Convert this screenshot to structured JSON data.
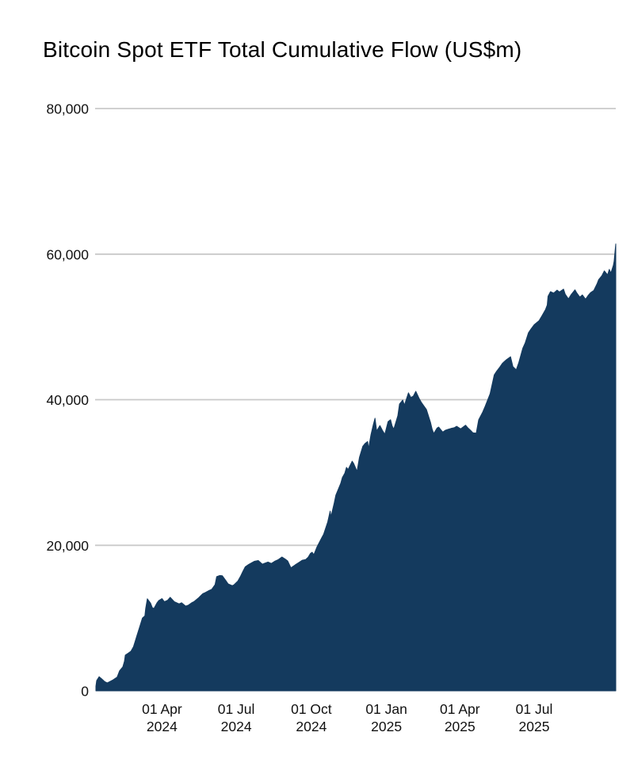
{
  "title": "Bitcoin Spot ETF Total Cumulative Flow (US$m)",
  "colors": {
    "area": "#143a5e",
    "gridline": "#c9c9c9",
    "text": "#111111",
    "title_text": "#000000",
    "background": "#ffffff"
  },
  "chart_data": {
    "type": "area",
    "title": "Bitcoin Spot ETF Total Cumulative Flow (US$m)",
    "unit": "US$m",
    "series_name": "Total cumulative flow",
    "grid": true,
    "legend": "none",
    "x_start": "2024-01-11",
    "x_end": "2025-10-09",
    "ylim": [
      0,
      80000
    ],
    "y_ticks": [
      {
        "value": 0,
        "label": "0"
      },
      {
        "value": 20000,
        "label": "20,000"
      },
      {
        "value": 40000,
        "label": "40,000"
      },
      {
        "value": 60000,
        "label": "60,000"
      },
      {
        "value": 80000,
        "label": "80,000"
      }
    ],
    "x_ticks": [
      {
        "date": "2024-04-01",
        "line1": "01 Apr",
        "line2": "2024"
      },
      {
        "date": "2024-07-01",
        "line1": "01 Jul",
        "line2": "2024"
      },
      {
        "date": "2024-10-01",
        "line1": "01 Oct",
        "line2": "2024"
      },
      {
        "date": "2025-01-01",
        "line1": "01 Jan",
        "line2": "2025"
      },
      {
        "date": "2025-04-01",
        "line1": "01 Apr",
        "line2": "2025"
      },
      {
        "date": "2025-07-01",
        "line1": "01 Jul",
        "line2": "2025"
      }
    ],
    "points": [
      [
        "2024-01-11",
        630
      ],
      [
        "2024-01-12",
        1420
      ],
      [
        "2024-01-15",
        1950
      ],
      [
        "2024-01-18",
        1650
      ],
      [
        "2024-01-22",
        1250
      ],
      [
        "2024-01-25",
        1090
      ],
      [
        "2024-01-29",
        1330
      ],
      [
        "2024-02-01",
        1500
      ],
      [
        "2024-02-06",
        1880
      ],
      [
        "2024-02-09",
        2750
      ],
      [
        "2024-02-13",
        3300
      ],
      [
        "2024-02-15",
        4050
      ],
      [
        "2024-02-16",
        4910
      ],
      [
        "2024-02-20",
        5200
      ],
      [
        "2024-02-23",
        5450
      ],
      [
        "2024-02-26",
        6050
      ],
      [
        "2024-02-28",
        6750
      ],
      [
        "2024-03-01",
        7500
      ],
      [
        "2024-03-05",
        8900
      ],
      [
        "2024-03-08",
        10000
      ],
      [
        "2024-03-11",
        10300
      ],
      [
        "2024-03-12",
        11300
      ],
      [
        "2024-03-14",
        12650
      ],
      [
        "2024-03-18",
        12050
      ],
      [
        "2024-03-20",
        11450
      ],
      [
        "2024-03-22",
        11300
      ],
      [
        "2024-03-26",
        12100
      ],
      [
        "2024-03-28",
        12400
      ],
      [
        "2024-04-01",
        12680
      ],
      [
        "2024-04-04",
        12250
      ],
      [
        "2024-04-08",
        12450
      ],
      [
        "2024-04-11",
        12850
      ],
      [
        "2024-04-16",
        12250
      ],
      [
        "2024-04-22",
        11950
      ],
      [
        "2024-04-25",
        12100
      ],
      [
        "2024-04-30",
        11650
      ],
      [
        "2024-05-03",
        11750
      ],
      [
        "2024-05-08",
        12150
      ],
      [
        "2024-05-10",
        12250
      ],
      [
        "2024-05-16",
        12800
      ],
      [
        "2024-05-21",
        13350
      ],
      [
        "2024-05-24",
        13500
      ],
      [
        "2024-05-29",
        13800
      ],
      [
        "2024-06-01",
        13950
      ],
      [
        "2024-06-05",
        14600
      ],
      [
        "2024-06-07",
        15700
      ],
      [
        "2024-06-11",
        15850
      ],
      [
        "2024-06-14",
        15800
      ],
      [
        "2024-06-18",
        15200
      ],
      [
        "2024-06-21",
        14700
      ],
      [
        "2024-06-26",
        14450
      ],
      [
        "2024-06-28",
        14550
      ],
      [
        "2024-07-03",
        15100
      ],
      [
        "2024-07-06",
        15700
      ],
      [
        "2024-07-09",
        16400
      ],
      [
        "2024-07-12",
        17050
      ],
      [
        "2024-07-16",
        17350
      ],
      [
        "2024-07-19",
        17550
      ],
      [
        "2024-07-23",
        17800
      ],
      [
        "2024-07-28",
        17900
      ],
      [
        "2024-08-02",
        17400
      ],
      [
        "2024-08-05",
        17550
      ],
      [
        "2024-08-09",
        17700
      ],
      [
        "2024-08-13",
        17500
      ],
      [
        "2024-08-17",
        17800
      ],
      [
        "2024-08-21",
        18000
      ],
      [
        "2024-08-26",
        18400
      ],
      [
        "2024-08-30",
        18100
      ],
      [
        "2024-09-02",
        17850
      ],
      [
        "2024-09-06",
        16900
      ],
      [
        "2024-09-11",
        17300
      ],
      [
        "2024-09-16",
        17650
      ],
      [
        "2024-09-20",
        17950
      ],
      [
        "2024-09-24",
        18050
      ],
      [
        "2024-09-27",
        18350
      ],
      [
        "2024-09-30",
        18900
      ],
      [
        "2024-10-02",
        19050
      ],
      [
        "2024-10-04",
        18700
      ],
      [
        "2024-10-08",
        19800
      ],
      [
        "2024-10-14",
        21100
      ],
      [
        "2024-10-16",
        21500
      ],
      [
        "2024-10-21",
        23200
      ],
      [
        "2024-10-24",
        24700
      ],
      [
        "2024-10-25",
        23900
      ],
      [
        "2024-10-29",
        25800
      ],
      [
        "2024-10-31",
        26900
      ],
      [
        "2024-11-06",
        28500
      ],
      [
        "2024-11-08",
        29300
      ],
      [
        "2024-11-11",
        29900
      ],
      [
        "2024-11-13",
        30700
      ],
      [
        "2024-11-15",
        30400
      ],
      [
        "2024-11-20",
        31550
      ],
      [
        "2024-11-22",
        31200
      ],
      [
        "2024-11-26",
        30150
      ],
      [
        "2024-11-29",
        32100
      ],
      [
        "2024-12-03",
        33600
      ],
      [
        "2024-12-06",
        34000
      ],
      [
        "2024-12-09",
        34250
      ],
      [
        "2024-12-10",
        33250
      ],
      [
        "2024-12-13",
        35200
      ],
      [
        "2024-12-16",
        36600
      ],
      [
        "2024-12-18",
        37450
      ],
      [
        "2024-12-20",
        35700
      ],
      [
        "2024-12-24",
        36450
      ],
      [
        "2024-12-27",
        35800
      ],
      [
        "2024-12-30",
        35250
      ],
      [
        "2025-01-03",
        37000
      ],
      [
        "2025-01-06",
        37250
      ],
      [
        "2025-01-08",
        36400
      ],
      [
        "2025-01-10",
        35950
      ],
      [
        "2025-01-15",
        37800
      ],
      [
        "2025-01-17",
        39400
      ],
      [
        "2025-01-21",
        39950
      ],
      [
        "2025-01-23",
        39250
      ],
      [
        "2025-01-28",
        40950
      ],
      [
        "2025-01-31",
        40300
      ],
      [
        "2025-02-03",
        40500
      ],
      [
        "2025-02-06",
        41150
      ],
      [
        "2025-02-10",
        40200
      ],
      [
        "2025-02-13",
        39600
      ],
      [
        "2025-02-19",
        38650
      ],
      [
        "2025-02-24",
        36900
      ],
      [
        "2025-02-26",
        35950
      ],
      [
        "2025-02-28",
        35350
      ],
      [
        "2025-03-04",
        36100
      ],
      [
        "2025-03-06",
        36250
      ],
      [
        "2025-03-11",
        35550
      ],
      [
        "2025-03-14",
        35800
      ],
      [
        "2025-03-18",
        35950
      ],
      [
        "2025-03-21",
        36050
      ],
      [
        "2025-03-25",
        36150
      ],
      [
        "2025-03-28",
        36350
      ],
      [
        "2025-04-02",
        36000
      ],
      [
        "2025-04-08",
        36500
      ],
      [
        "2025-04-11",
        36100
      ],
      [
        "2025-04-14",
        35800
      ],
      [
        "2025-04-17",
        35450
      ],
      [
        "2025-04-21",
        35400
      ],
      [
        "2025-04-24",
        37250
      ],
      [
        "2025-04-29",
        38300
      ],
      [
        "2025-05-02",
        39100
      ],
      [
        "2025-05-08",
        40800
      ],
      [
        "2025-05-13",
        43400
      ],
      [
        "2025-05-16",
        43900
      ],
      [
        "2025-05-20",
        44500
      ],
      [
        "2025-05-23",
        45000
      ],
      [
        "2025-05-28",
        45500
      ],
      [
        "2025-06-02",
        45900
      ],
      [
        "2025-06-05",
        44550
      ],
      [
        "2025-06-09",
        44100
      ],
      [
        "2025-06-12",
        45050
      ],
      [
        "2025-06-17",
        47050
      ],
      [
        "2025-06-20",
        47800
      ],
      [
        "2025-06-24",
        49200
      ],
      [
        "2025-06-27",
        49700
      ],
      [
        "2025-07-01",
        50300
      ],
      [
        "2025-07-07",
        50850
      ],
      [
        "2025-07-11",
        51600
      ],
      [
        "2025-07-15",
        52400
      ],
      [
        "2025-07-17",
        53000
      ],
      [
        "2025-07-18",
        54200
      ],
      [
        "2025-07-21",
        54850
      ],
      [
        "2025-07-25",
        54650
      ],
      [
        "2025-07-29",
        55050
      ],
      [
        "2025-08-01",
        54800
      ],
      [
        "2025-08-06",
        55200
      ],
      [
        "2025-08-08",
        54500
      ],
      [
        "2025-08-12",
        53850
      ],
      [
        "2025-08-15",
        54400
      ],
      [
        "2025-08-20",
        55100
      ],
      [
        "2025-08-22",
        54700
      ],
      [
        "2025-08-26",
        54100
      ],
      [
        "2025-08-29",
        54400
      ],
      [
        "2025-09-02",
        53800
      ],
      [
        "2025-09-05",
        54300
      ],
      [
        "2025-09-08",
        54700
      ],
      [
        "2025-09-12",
        55000
      ],
      [
        "2025-09-16",
        55900
      ],
      [
        "2025-09-18",
        56500
      ],
      [
        "2025-09-22",
        57050
      ],
      [
        "2025-09-25",
        57700
      ],
      [
        "2025-09-29",
        57150
      ],
      [
        "2025-10-01",
        57900
      ],
      [
        "2025-10-03",
        57400
      ],
      [
        "2025-10-06",
        58450
      ],
      [
        "2025-10-07",
        59000
      ],
      [
        "2025-10-08",
        60300
      ],
      [
        "2025-10-09",
        61400
      ]
    ]
  }
}
